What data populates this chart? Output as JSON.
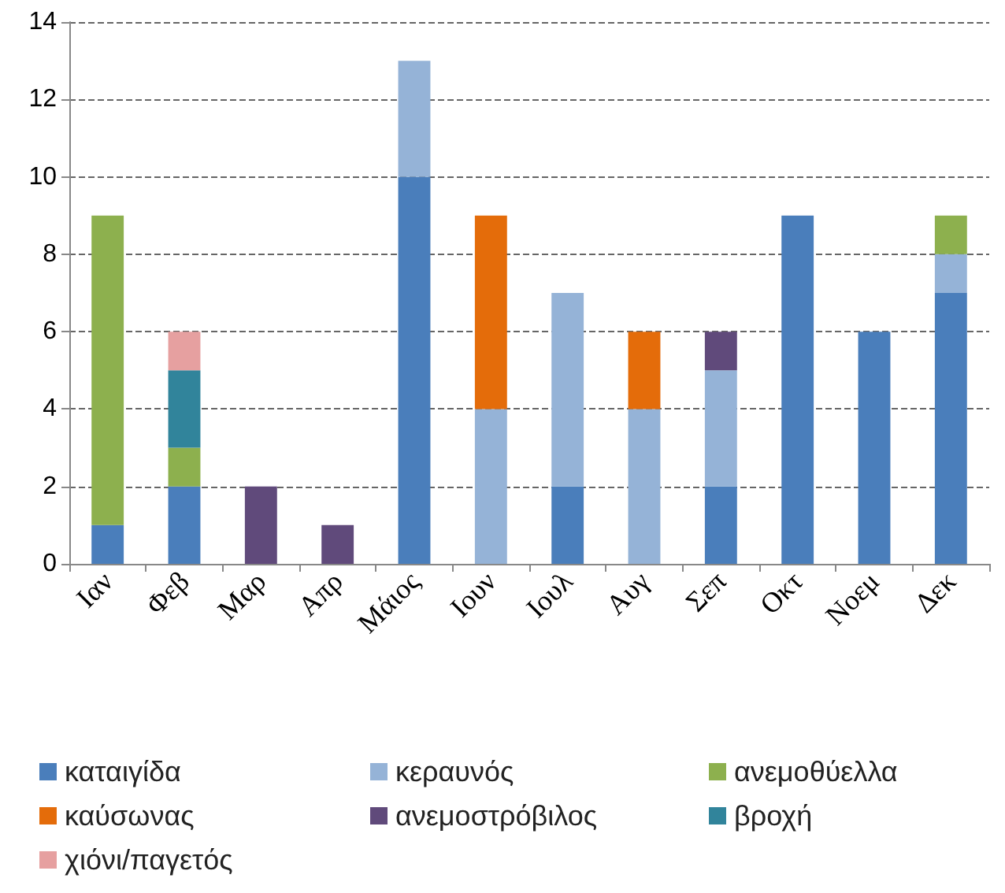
{
  "chart_data": {
    "type": "bar",
    "stacked": true,
    "categories": [
      "Ιαν",
      "Φεβ",
      "Μαρ",
      "Απρ",
      "Μάιος",
      "Ιουν",
      "Ιουλ",
      "Αυγ",
      "Σεπ",
      "Οκτ",
      "Νοεμ",
      "Δεκ"
    ],
    "ylim": [
      0,
      14
    ],
    "yticks": [
      0,
      2,
      4,
      6,
      8,
      10,
      12,
      14
    ],
    "grid": "y",
    "legend": "bottom",
    "series": [
      {
        "name": "καταιγίδα",
        "color": "#4a7ebb",
        "values": [
          1,
          2,
          null,
          null,
          10,
          null,
          2,
          null,
          2,
          9,
          6,
          7
        ]
      },
      {
        "name": "κεραυνός",
        "color": "#95b3d7",
        "values": [
          null,
          null,
          null,
          null,
          3,
          4,
          5,
          4,
          3,
          null,
          null,
          1
        ]
      },
      {
        "name": "ανεμοθύελλα",
        "color": "#8db04e",
        "values": [
          8,
          1,
          null,
          null,
          null,
          null,
          null,
          null,
          null,
          null,
          null,
          1
        ]
      },
      {
        "name": "καύσωνας",
        "color": "#e46c0a",
        "values": [
          null,
          null,
          null,
          null,
          null,
          5,
          null,
          2,
          null,
          null,
          null,
          null
        ]
      },
      {
        "name": "ανεμοστρόβιλος",
        "color": "#604a7b",
        "values": [
          null,
          null,
          2,
          1,
          null,
          null,
          null,
          null,
          1,
          null,
          null,
          null
        ]
      },
      {
        "name": "βροχή",
        "color": "#31849b",
        "values": [
          null,
          2,
          null,
          null,
          null,
          null,
          null,
          null,
          null,
          null,
          null,
          null
        ]
      },
      {
        "name": "χιόνι/παγετός",
        "color": "#e6a0a0",
        "values": [
          null,
          1,
          null,
          null,
          null,
          null,
          null,
          null,
          null,
          null,
          null,
          null
        ]
      }
    ]
  }
}
